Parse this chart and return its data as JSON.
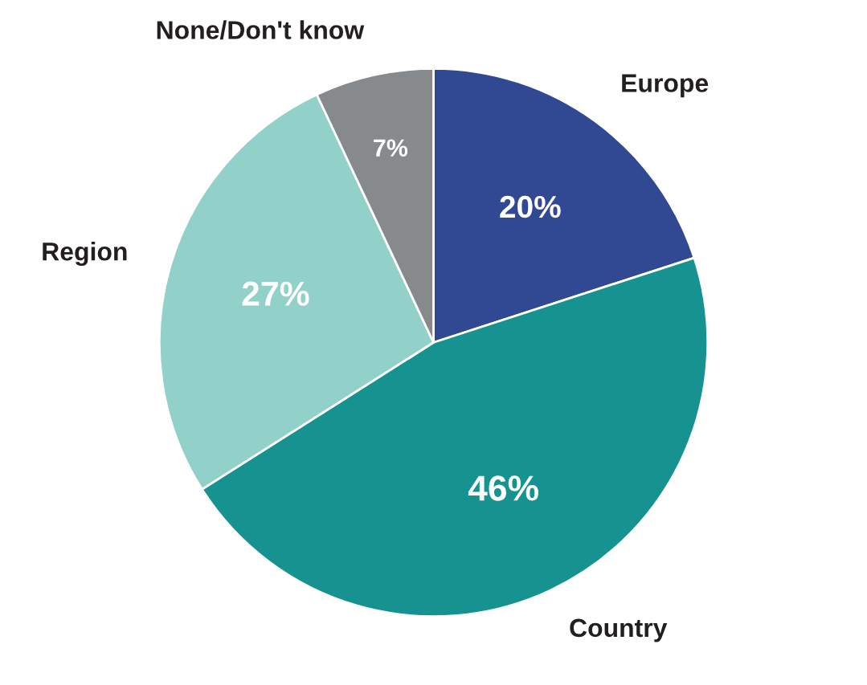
{
  "chart_data": {
    "type": "pie",
    "categories": [
      "Europe",
      "Country",
      "Region",
      "None/Don't know"
    ],
    "values": [
      20,
      46,
      27,
      7
    ],
    "colors": [
      "#314893",
      "#169290",
      "#92d1c9",
      "#878a8d"
    ],
    "value_labels": [
      "20%",
      "46%",
      "27%",
      "7%"
    ],
    "legend": false
  }
}
